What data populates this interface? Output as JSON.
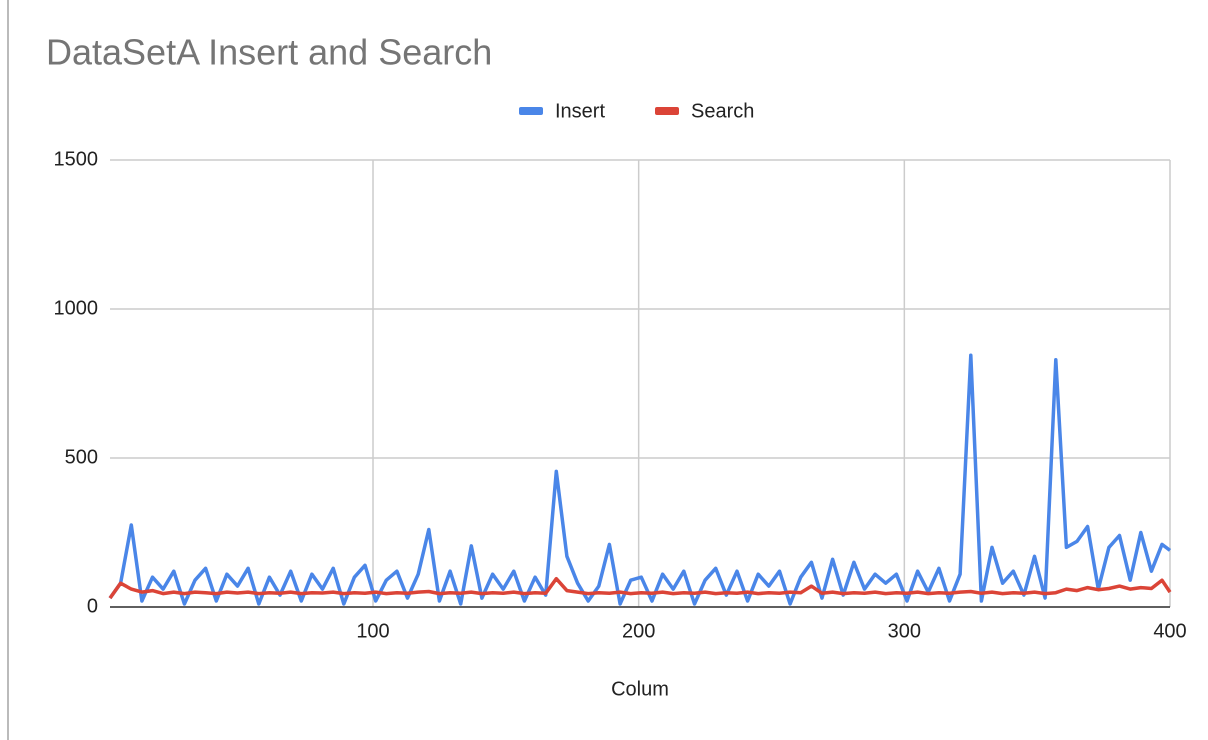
{
  "chart_data": {
    "type": "line",
    "title": "DataSetA Insert and Search",
    "x_label": "Colum",
    "x": [
      1,
      5,
      9,
      13,
      17,
      21,
      25,
      29,
      33,
      37,
      41,
      45,
      49,
      53,
      57,
      61,
      65,
      69,
      73,
      77,
      81,
      85,
      89,
      93,
      97,
      101,
      105,
      109,
      113,
      117,
      121,
      125,
      129,
      133,
      137,
      141,
      145,
      149,
      153,
      157,
      161,
      165,
      169,
      173,
      177,
      181,
      185,
      189,
      193,
      197,
      201,
      205,
      209,
      213,
      217,
      221,
      225,
      229,
      233,
      237,
      241,
      245,
      249,
      253,
      257,
      261,
      265,
      269,
      273,
      277,
      281,
      285,
      289,
      293,
      297,
      301,
      305,
      309,
      313,
      317,
      321,
      325,
      329,
      333,
      337,
      341,
      345,
      349,
      353,
      357,
      361,
      365,
      369,
      373,
      377,
      381,
      385,
      389,
      393,
      397,
      400
    ],
    "series": [
      {
        "name": "Insert",
        "color": "#4a86e8",
        "values": [
          30,
          80,
          275,
          20,
          100,
          60,
          120,
          10,
          90,
          130,
          20,
          110,
          70,
          130,
          10,
          100,
          40,
          120,
          20,
          110,
          60,
          130,
          10,
          100,
          140,
          20,
          90,
          120,
          30,
          110,
          260,
          20,
          120,
          10,
          205,
          30,
          110,
          60,
          120,
          20,
          100,
          40,
          455,
          170,
          80,
          20,
          70,
          210,
          10,
          90,
          100,
          20,
          110,
          60,
          120,
          10,
          90,
          130,
          40,
          120,
          20,
          110,
          70,
          120,
          10,
          100,
          150,
          30,
          160,
          40,
          150,
          60,
          110,
          80,
          110,
          20,
          120,
          50,
          130,
          20,
          110,
          845,
          20,
          200,
          80,
          120,
          40,
          170,
          30,
          830,
          200,
          220,
          270,
          60,
          200,
          240,
          90,
          250,
          120,
          210,
          190
        ]
      },
      {
        "name": "Search",
        "color": "#db4437",
        "values": [
          30,
          80,
          60,
          50,
          55,
          45,
          50,
          45,
          50,
          48,
          45,
          50,
          47,
          50,
          45,
          48,
          46,
          50,
          45,
          48,
          47,
          50,
          45,
          48,
          46,
          50,
          45,
          48,
          46,
          50,
          52,
          45,
          48,
          46,
          50,
          45,
          48,
          46,
          50,
          45,
          48,
          46,
          95,
          55,
          50,
          45,
          48,
          46,
          50,
          45,
          48,
          46,
          50,
          45,
          48,
          46,
          50,
          45,
          48,
          46,
          50,
          45,
          48,
          46,
          50,
          48,
          70,
          46,
          50,
          45,
          48,
          46,
          50,
          45,
          48,
          46,
          50,
          45,
          48,
          46,
          50,
          52,
          46,
          50,
          45,
          48,
          46,
          50,
          45,
          48,
          60,
          55,
          65,
          58,
          62,
          70,
          60,
          65,
          62,
          90,
          50
        ]
      }
    ],
    "xlim": [
      1,
      400
    ],
    "xticks": [
      100,
      200,
      300,
      400
    ],
    "ylim": [
      0,
      1500
    ],
    "yticks": [
      0,
      500,
      1000,
      1500
    ],
    "grid": true,
    "legend": "top"
  }
}
